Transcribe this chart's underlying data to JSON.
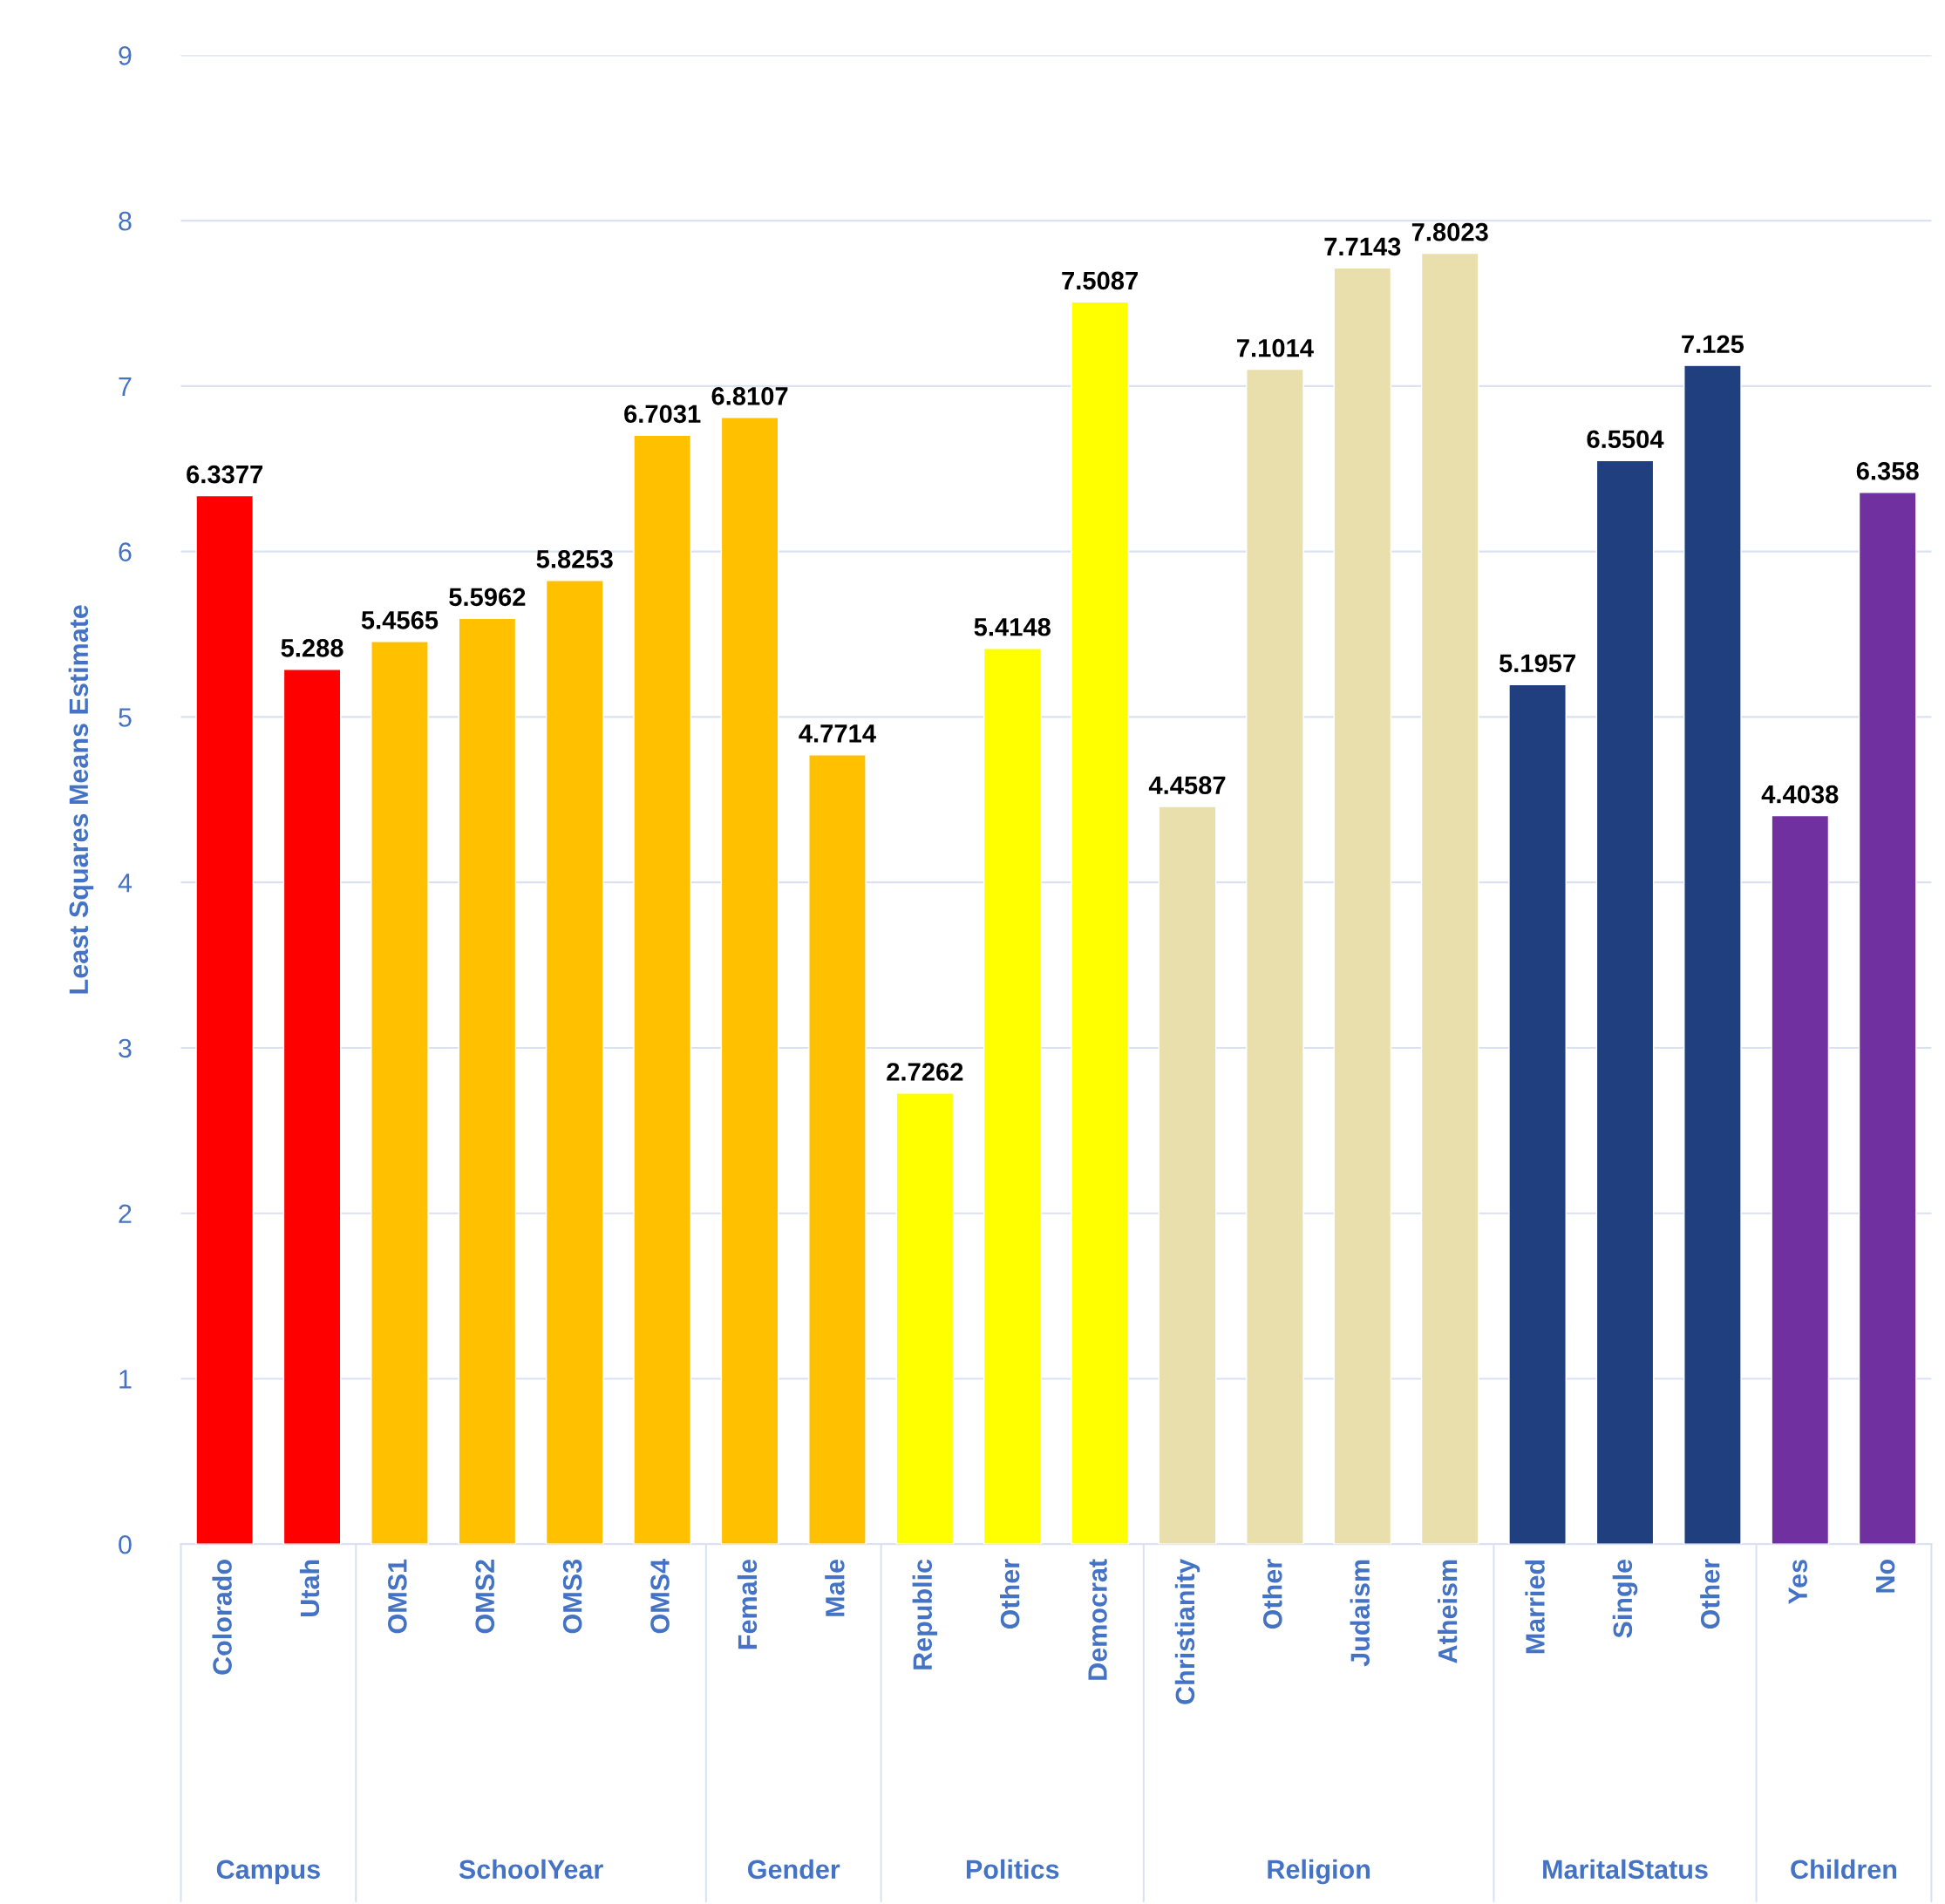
{
  "chart_data": {
    "type": "bar",
    "ylabel": "Least Squares Means Estimate",
    "categories": [
      "Colorado",
      "Utah",
      "OMS1",
      "OMS2",
      "OMS3",
      "OMS4",
      "Female",
      "Male",
      "Republic",
      "Other",
      "Democrat",
      "Christianity",
      "Other",
      "Judaism",
      "Atheism",
      "Married",
      "Single",
      "Other",
      "Yes",
      "No"
    ],
    "values": [
      6.3377,
      5.288,
      5.4565,
      5.5962,
      5.8253,
      6.7031,
      6.8107,
      4.7714,
      2.7262,
      5.4148,
      7.5087,
      4.4587,
      7.1014,
      7.7143,
      7.8023,
      5.1957,
      6.5504,
      7.125,
      4.4038,
      6.358
    ],
    "colors": [
      "#ff0000",
      "#ff0000",
      "#ffc000",
      "#ffc000",
      "#ffc000",
      "#ffc000",
      "#ffc000",
      "#ffc000",
      "#ffff00",
      "#ffff00",
      "#ffff00",
      "#e8dfac",
      "#e8dfac",
      "#e8dfac",
      "#e8dfac",
      "#203f7e",
      "#203f7e",
      "#203f7e",
      "#7030a0",
      "#7030a0"
    ],
    "annotations": [
      "Campus",
      "SchoolYear",
      "Gender",
      "Politics",
      "Religion",
      "MaritalStatus",
      "Children"
    ],
    "ylim": [
      0,
      9
    ],
    "yticks": [
      0,
      1,
      2,
      3,
      4,
      5,
      6,
      7,
      8,
      9
    ],
    "grid": "y",
    "data_labels": true,
    "legend": false
  }
}
